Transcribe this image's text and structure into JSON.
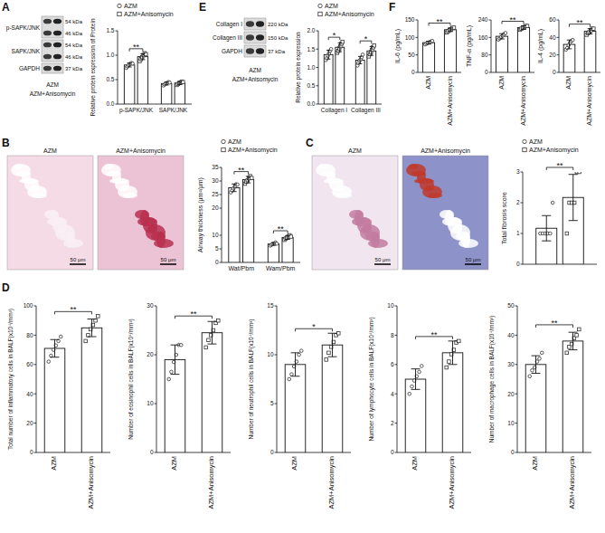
{
  "chart_data": [
    {
      "type": "bar",
      "y_label": "Relative protein expression of Protein",
      "categories": [
        "p-SAPK/JNK",
        "SAPK/JNK"
      ],
      "series": [
        {
          "name": "AZM",
          "marker": "circle",
          "values": [
            0.8,
            0.42
          ],
          "errors": [
            0.04,
            0.03
          ],
          "points": [
            [
              0.74,
              0.77,
              0.8,
              0.82,
              0.84,
              0.83
            ],
            [
              0.38,
              0.4,
              0.42,
              0.43,
              0.45,
              0.44
            ]
          ]
        },
        {
          "name": "AZM+Anisomycin",
          "marker": "square",
          "values": [
            0.97,
            0.43
          ],
          "errors": [
            0.06,
            0.03
          ],
          "points": [
            [
              0.88,
              0.92,
              0.96,
              1.0,
              1.04,
              1.02
            ],
            [
              0.39,
              0.41,
              0.43,
              0.44,
              0.46,
              0.45
            ]
          ]
        }
      ],
      "color": "#ffffff",
      "ylim": [
        0,
        1.5
      ],
      "yticks": [
        {
          "value": 0,
          "label": "0.0"
        },
        {
          "value": 0.5,
          "label": "0.5"
        },
        {
          "value": 1,
          "label": "1.0"
        },
        {
          "value": 1.5,
          "label": "1.5"
        }
      ],
      "legend": "top",
      "annotations": [
        {
          "text": "**",
          "category": 0
        }
      ]
    },
    {
      "type": "bar",
      "y_label": "Relative protein expression",
      "categories": [
        "Collagen I",
        "Collagen III"
      ],
      "series": [
        {
          "name": "AZM",
          "marker": "circle",
          "values": [
            1.35,
            1.2
          ],
          "errors": [
            0.12,
            0.1
          ],
          "points": [
            [
              1.2,
              1.25,
              1.32,
              1.38,
              1.45,
              1.5
            ],
            [
              1.05,
              1.12,
              1.18,
              1.22,
              1.28,
              1.35
            ]
          ]
        },
        {
          "name": "AZM+Anisomycin",
          "marker": "square",
          "values": [
            1.55,
            1.45
          ],
          "errors": [
            0.12,
            0.12
          ],
          "points": [
            [
              1.4,
              1.45,
              1.52,
              1.58,
              1.65,
              1.7
            ],
            [
              1.3,
              1.36,
              1.42,
              1.48,
              1.55,
              1.6
            ]
          ]
        }
      ],
      "color": "#ffffff",
      "ylim": [
        0,
        2
      ],
      "yticks": [
        {
          "value": 0,
          "label": "0.0"
        },
        {
          "value": 0.5,
          "label": "0.5"
        },
        {
          "value": 1,
          "label": "1.0"
        },
        {
          "value": 1.5,
          "label": "1.5"
        },
        {
          "value": 2,
          "label": "2.0"
        }
      ],
      "legend": "top",
      "annotations": [
        {
          "text": "*",
          "category": 0
        },
        {
          "text": "*",
          "category": 1
        }
      ]
    },
    {
      "type": "bar",
      "y_label": "IL-6 (pg/mL)",
      "categories": [
        "AZM",
        "AZM+Anisomycin"
      ],
      "values": [
        85,
        122
      ],
      "errors": [
        4,
        5
      ],
      "points": [
        [
          80,
          82,
          84,
          86,
          88,
          90
        ],
        [
          114,
          118,
          121,
          124,
          127,
          128
        ]
      ],
      "color": "#ffffff",
      "ylim": [
        0,
        150
      ],
      "yticks": [
        0,
        50,
        100,
        150
      ],
      "annotations": [
        {
          "text": "**"
        }
      ]
    },
    {
      "type": "bar",
      "y_label": "TNF-α (pg/mL)",
      "categories": [
        "AZM",
        "AZM+Anisomycin"
      ],
      "values": [
        165,
        205
      ],
      "errors": [
        12,
        8
      ],
      "points": [
        [
          150,
          155,
          162,
          168,
          175,
          180
        ],
        [
          195,
          200,
          204,
          207,
          212,
          212
        ]
      ],
      "color": "#ffffff",
      "ylim": [
        0,
        240
      ],
      "yticks": [
        0,
        80,
        160,
        240
      ],
      "annotations": [
        {
          "text": "**"
        }
      ]
    },
    {
      "type": "bar",
      "y_label": "IL-4 (pg/mL)",
      "categories": [
        "AZM",
        "AZM+Anisomycin"
      ],
      "values": [
        32,
        47
      ],
      "errors": [
        5,
        3
      ],
      "points": [
        [
          26,
          28,
          31,
          34,
          36,
          37
        ],
        [
          43,
          45,
          46,
          48,
          50,
          50
        ]
      ],
      "color": "#ffffff",
      "ylim": [
        0,
        60
      ],
      "yticks": [
        0,
        20,
        40,
        60
      ],
      "annotations": [
        {
          "text": "**"
        }
      ]
    },
    {
      "type": "bar",
      "y_label": "Airway thickness (μm²/μm)",
      "categories": [
        "Wat/Pbm",
        "Wam/Pbm"
      ],
      "series": [
        {
          "name": "AZM",
          "marker": "circle",
          "values": [
            27.5,
            6.8
          ],
          "errors": [
            1.4,
            0.5
          ],
          "points": [
            [
              25.8,
              26.5,
              27.2,
              28,
              28.8,
              28.7
            ],
            [
              6.2,
              6.5,
              6.8,
              7,
              7.4,
              6.9
            ]
          ]
        },
        {
          "name": "AZM+Anisomycin",
          "marker": "square",
          "values": [
            30.5,
            9.2
          ],
          "errors": [
            1.2,
            0.7
          ],
          "points": [
            [
              29,
              29.8,
              30.3,
              31,
              31.8,
              31.1
            ],
            [
              8.3,
              8.8,
              9.1,
              9.5,
              10,
              9.5
            ]
          ]
        }
      ],
      "color": "#ffffff",
      "ylim": [
        0,
        35
      ],
      "yticks": [
        0,
        5,
        10,
        20,
        25,
        30,
        35
      ],
      "legend": "top",
      "annotations": [
        {
          "text": "**",
          "category": 0
        },
        {
          "text": "**",
          "category": 1
        }
      ]
    },
    {
      "type": "bar",
      "y_label": "Total fibrosis score",
      "categories": [
        null
      ],
      "series": [
        {
          "name": "AZM",
          "marker": "circle",
          "values": [
            1.17
          ],
          "errors": [
            0.41
          ],
          "points": [
            [
              1,
              1,
              1,
              1,
              1,
              2
            ]
          ]
        },
        {
          "name": "AZM+Anisomycin",
          "marker": "square",
          "values": [
            2.17
          ],
          "errors": [
            0.75
          ],
          "points": [
            [
              1,
              2,
              2,
              2,
              3,
              3
            ]
          ]
        }
      ],
      "color": "#ffffff",
      "ylim": [
        0,
        3
      ],
      "yticks": [
        0,
        1,
        2,
        3
      ],
      "legend": "top",
      "annotations": [
        {
          "text": "**",
          "category": 0
        }
      ]
    },
    {
      "type": "bar",
      "y_label": "Total number of inflammatory cells in BALF(x10⁴/mm³)",
      "categories": [
        "AZM",
        "AZM+Anisomycin"
      ],
      "values": [
        71,
        85
      ],
      "errors": [
        6,
        6
      ],
      "points": [
        [
          62,
          66,
          70,
          73,
          76,
          79
        ],
        [
          76,
          80,
          84,
          87,
          90,
          93
        ]
      ],
      "color": "#ffffff",
      "ylim": [
        0,
        100
      ],
      "yticks": [
        0,
        20,
        40,
        60,
        80,
        100
      ],
      "annotations": [
        {
          "text": "**"
        }
      ]
    },
    {
      "type": "bar",
      "y_label": "Number of eosinophil cells in BALF(x10⁴/mm³)",
      "categories": [
        "AZM",
        "AZM+Anisomycin"
      ],
      "values": [
        19,
        24.5
      ],
      "errors": [
        3,
        2.3
      ],
      "points": [
        [
          15,
          16.5,
          18.5,
          20,
          22,
          22
        ],
        [
          21.5,
          23,
          24,
          25,
          26.5,
          27
        ]
      ],
      "color": "#ffffff",
      "ylim": [
        0,
        30
      ],
      "yticks": [
        0,
        10,
        20,
        30
      ],
      "annotations": [
        {
          "text": "**"
        }
      ]
    },
    {
      "type": "bar",
      "y_label": "Number of neutrophil cells in BALF(x10⁴/mm³)",
      "categories": [
        "AZM",
        "AZM+Anisomycin"
      ],
      "values": [
        9,
        11
      ],
      "errors": [
        1.2,
        1.2
      ],
      "points": [
        [
          7.5,
          8,
          8.8,
          9.3,
          10,
          10.4
        ],
        [
          9.5,
          10.2,
          10.8,
          11.3,
          12,
          12.2
        ]
      ],
      "color": "#ffffff",
      "ylim": [
        0,
        15
      ],
      "yticks": [
        0,
        5,
        10,
        15
      ],
      "annotations": [
        {
          "text": "*"
        }
      ]
    },
    {
      "type": "bar",
      "y_label": "Number of lymphocyte cells in BALF(x10⁴/mm³)",
      "categories": [
        "AZM",
        "AZM+Anisomycin"
      ],
      "values": [
        5,
        6.8
      ],
      "errors": [
        0.7,
        0.8
      ],
      "points": [
        [
          4,
          4.5,
          4.9,
          5.2,
          5.5,
          5.9
        ],
        [
          5.8,
          6.2,
          6.7,
          7,
          7.5,
          7.6
        ]
      ],
      "color": "#ffffff",
      "ylim": [
        0,
        10
      ],
      "yticks": [
        0,
        2,
        4,
        6,
        8,
        10
      ],
      "annotations": [
        {
          "text": "**"
        }
      ]
    },
    {
      "type": "bar",
      "y_label": "Number of macrophage cells in BALF(x10⁴/mm³)",
      "categories": [
        "AZM",
        "AZM+Anisomycin"
      ],
      "values": [
        30,
        38
      ],
      "errors": [
        3,
        3
      ],
      "points": [
        [
          26,
          28,
          29,
          31,
          32,
          34
        ],
        [
          34,
          36,
          37,
          39,
          40,
          42
        ]
      ],
      "color": "#ffffff",
      "ylim": [
        0,
        50
      ],
      "yticks": [
        0,
        10,
        20,
        30,
        40,
        50
      ],
      "annotations": [
        {
          "text": "**"
        }
      ]
    }
  ],
  "panels": [
    {
      "letter": "A",
      "blot": {
        "rows": [
          {
            "label": "p-SAPK/JNK",
            "kda": [
              "54 kDa",
              "46 kDa"
            ]
          },
          {
            "label": "SAPK/JNK",
            "kda": [
              "54 kDa",
              "46 kDa"
            ]
          },
          {
            "label": "GAPDH",
            "kda": [
              "37 kDa"
            ]
          }
        ],
        "lanes": [
          "AZM",
          "AZM+Anisomycin"
        ]
      }
    },
    {
      "letter": "B",
      "images": {
        "labels": [
          "AZM",
          "AZM+Anisomycin"
        ],
        "scale_bar": "50 μm"
      }
    },
    {
      "letter": "C",
      "images": {
        "labels": [
          "AZM",
          "AZM+Anisomycin"
        ],
        "scale_bar": "50 μm"
      }
    },
    {
      "letter": "D"
    },
    {
      "letter": "E",
      "blot": {
        "rows": [
          {
            "label": "Collagen I",
            "kda": [
              "220 kDa"
            ]
          },
          {
            "label": "Collagen III",
            "kda": [
              "150 kDa"
            ]
          },
          {
            "label": "GAPDH",
            "kda": [
              "37 kDa"
            ]
          }
        ],
        "lanes": [
          "AZM",
          "AZM+Anisomycin"
        ]
      }
    },
    {
      "letter": "F"
    }
  ]
}
